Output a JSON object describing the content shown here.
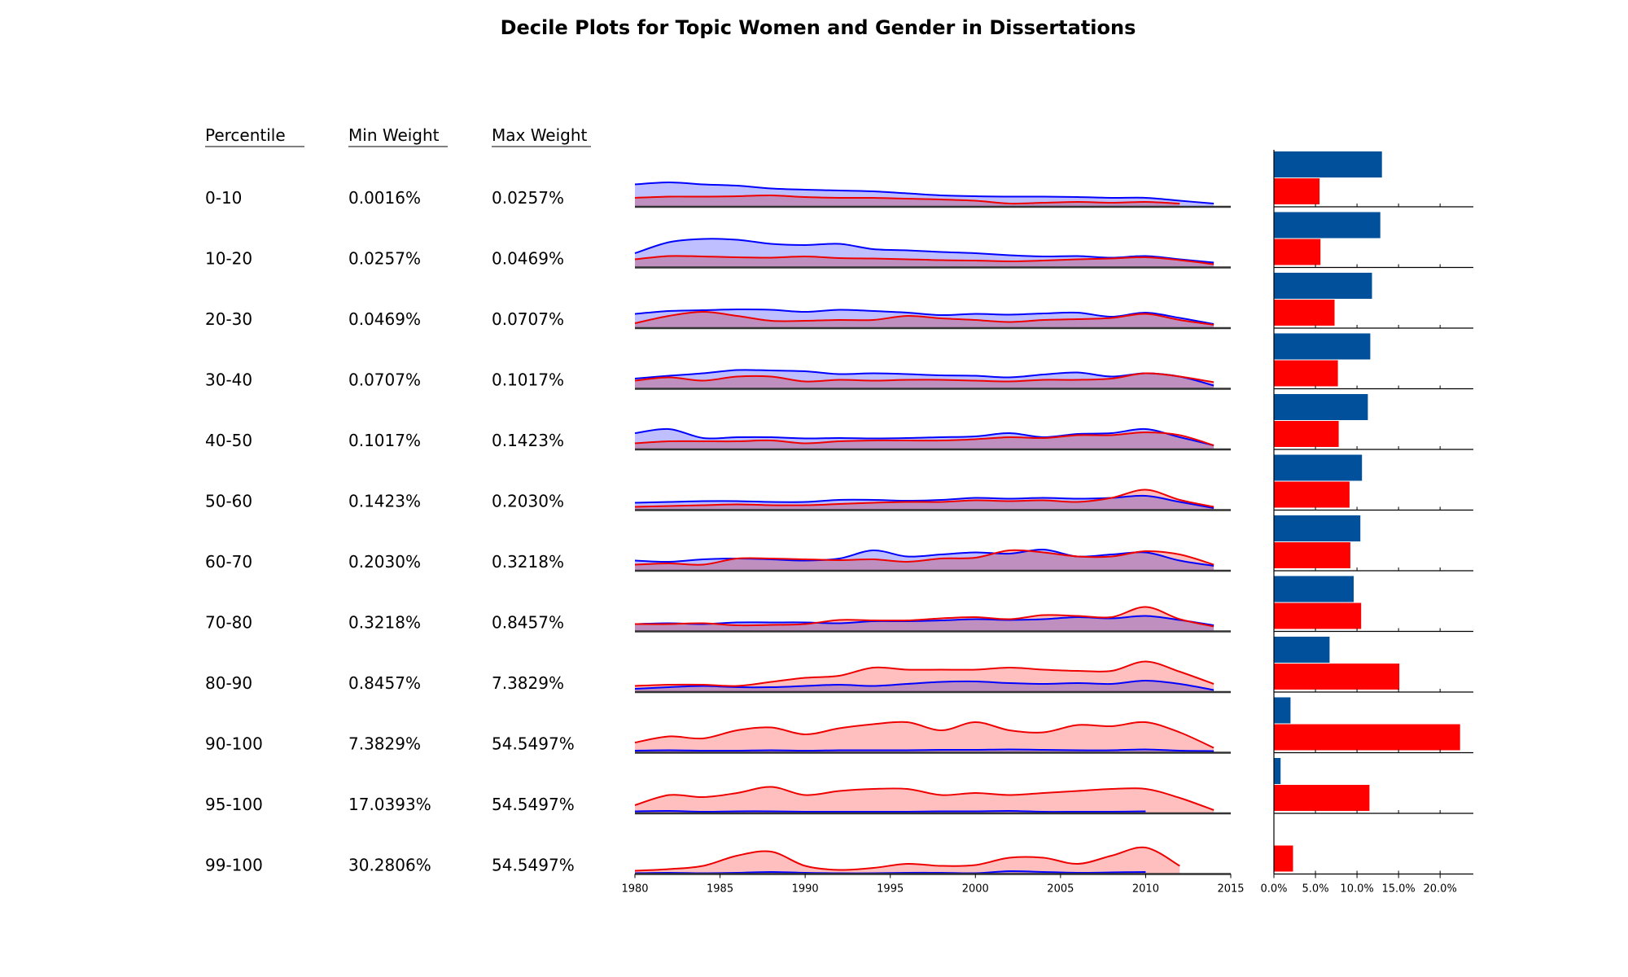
{
  "chart_data": {
    "type": "area",
    "title": "Decile Plots for Topic Women and Gender in Dissertations",
    "table_headers": [
      "Percentile",
      "Min Weight",
      "Max Weight"
    ],
    "x_range": [
      1980,
      2015
    ],
    "x_ticks": [
      "1980",
      "1985",
      "1990",
      "1995",
      "2000",
      "2005",
      "2010",
      "2015"
    ],
    "bar_ticks": [
      "0.0%",
      "5.0%",
      "10.0%",
      "15.0%",
      "20.0%"
    ],
    "bar_xlim": [
      0,
      24
    ],
    "colors": {
      "male_line": "#0000ff",
      "male_fill": "#bcbcff",
      "female_line": "#ee0000",
      "female_fill": "#ffbcbc",
      "overlap_fill": "#d08ec0",
      "male_bar": "#00509b",
      "female_bar": "#ff0000"
    },
    "years": [
      1980,
      1982,
      1984,
      1986,
      1988,
      1990,
      1992,
      1994,
      1996,
      1998,
      2000,
      2002,
      2004,
      2006,
      2008,
      2010,
      2012,
      2014
    ],
    "rows": [
      {
        "percentile": "0-10",
        "min_weight": "0.0016%",
        "max_weight": "0.0257%",
        "male": [
          0.55,
          0.6,
          0.55,
          0.52,
          0.45,
          0.42,
          0.4,
          0.38,
          0.33,
          0.28,
          0.26,
          0.25,
          0.25,
          0.24,
          0.22,
          0.22,
          0.15,
          0.08
        ],
        "female": [
          0.22,
          0.25,
          0.25,
          0.26,
          0.28,
          0.24,
          0.22,
          0.22,
          0.2,
          0.18,
          0.15,
          0.08,
          0.1,
          0.12,
          0.1,
          0.12,
          0.08,
          null
        ],
        "male_bar": 13.0,
        "female_bar": 5.5
      },
      {
        "percentile": "10-20",
        "min_weight": "0.0257%",
        "max_weight": "0.0469%",
        "male": [
          0.35,
          0.62,
          0.7,
          0.68,
          0.58,
          0.55,
          0.58,
          0.45,
          0.42,
          0.38,
          0.35,
          0.3,
          0.27,
          0.28,
          0.24,
          0.28,
          0.2,
          0.12
        ],
        "female": [
          0.2,
          0.28,
          0.27,
          0.25,
          0.24,
          0.27,
          0.23,
          0.22,
          0.2,
          0.18,
          0.17,
          0.15,
          0.17,
          0.2,
          0.22,
          0.25,
          0.18,
          0.08
        ],
        "male_bar": 12.8,
        "female_bar": 5.6
      },
      {
        "percentile": "20-30",
        "min_weight": "0.0469%",
        "max_weight": "0.0707%",
        "male": [
          0.35,
          0.42,
          0.44,
          0.46,
          0.45,
          0.4,
          0.45,
          0.42,
          0.38,
          0.32,
          0.35,
          0.33,
          0.36,
          0.38,
          0.28,
          0.38,
          0.25,
          0.1
        ],
        "female": [
          0.12,
          0.3,
          0.4,
          0.3,
          0.18,
          0.18,
          0.2,
          0.2,
          0.3,
          0.24,
          0.2,
          0.15,
          0.2,
          0.22,
          0.25,
          0.35,
          0.2,
          0.08
        ],
        "male_bar": 11.8,
        "female_bar": 7.3
      },
      {
        "percentile": "30-40",
        "min_weight": "0.0707%",
        "max_weight": "0.1017%",
        "male": [
          0.25,
          0.32,
          0.38,
          0.46,
          0.45,
          0.43,
          0.36,
          0.38,
          0.36,
          0.33,
          0.32,
          0.28,
          0.35,
          0.4,
          0.3,
          0.38,
          0.3,
          0.08
        ],
        "female": [
          0.2,
          0.28,
          0.2,
          0.3,
          0.3,
          0.18,
          0.22,
          0.2,
          0.22,
          0.22,
          0.2,
          0.18,
          0.22,
          0.22,
          0.25,
          0.38,
          0.3,
          0.16
        ],
        "male_bar": 11.6,
        "female_bar": 7.7
      },
      {
        "percentile": "40-50",
        "min_weight": "0.1017%",
        "max_weight": "0.1423%",
        "male": [
          0.4,
          0.5,
          0.28,
          0.3,
          0.3,
          0.27,
          0.28,
          0.27,
          0.28,
          0.3,
          0.32,
          0.4,
          0.3,
          0.38,
          0.4,
          0.5,
          0.3,
          0.1
        ],
        "female": [
          0.15,
          0.2,
          0.2,
          0.2,
          0.22,
          0.15,
          0.2,
          0.22,
          0.22,
          0.22,
          0.25,
          0.3,
          0.28,
          0.35,
          0.35,
          0.42,
          0.35,
          0.1
        ],
        "male_bar": 11.3,
        "female_bar": 7.8
      },
      {
        "percentile": "50-60",
        "min_weight": "0.1423%",
        "max_weight": "0.2030%",
        "male": [
          0.18,
          0.2,
          0.22,
          0.22,
          0.2,
          0.2,
          0.25,
          0.25,
          0.23,
          0.25,
          0.3,
          0.28,
          0.3,
          0.28,
          0.3,
          0.35,
          0.2,
          0.05
        ],
        "female": [
          0.08,
          0.1,
          0.12,
          0.14,
          0.12,
          0.12,
          0.15,
          0.18,
          0.2,
          0.2,
          0.24,
          0.22,
          0.24,
          0.2,
          0.3,
          0.5,
          0.25,
          0.08
        ],
        "male_bar": 10.6,
        "female_bar": 9.1
      },
      {
        "percentile": "60-70",
        "min_weight": "0.2030%",
        "max_weight": "0.3218%",
        "male": [
          0.25,
          0.22,
          0.28,
          0.3,
          0.28,
          0.25,
          0.3,
          0.5,
          0.35,
          0.4,
          0.45,
          0.42,
          0.52,
          0.35,
          0.4,
          0.45,
          0.25,
          0.12
        ],
        "female": [
          0.15,
          0.18,
          0.15,
          0.3,
          0.3,
          0.28,
          0.26,
          0.28,
          0.22,
          0.3,
          0.32,
          0.5,
          0.45,
          0.35,
          0.35,
          0.48,
          0.4,
          0.15
        ],
        "male_bar": 10.4,
        "female_bar": 9.2
      },
      {
        "percentile": "70-80",
        "min_weight": "0.3218%",
        "max_weight": "0.8457%",
        "male": [
          0.18,
          0.2,
          0.18,
          0.22,
          0.22,
          0.22,
          0.2,
          0.25,
          0.25,
          0.27,
          0.3,
          0.28,
          0.3,
          0.35,
          0.32,
          0.38,
          0.28,
          0.15
        ],
        "female": [
          0.18,
          0.18,
          0.2,
          0.15,
          0.16,
          0.18,
          0.28,
          0.27,
          0.27,
          0.32,
          0.35,
          0.3,
          0.4,
          0.38,
          0.35,
          0.6,
          0.3,
          0.12
        ],
        "male_bar": 9.6,
        "female_bar": 10.5
      },
      {
        "percentile": "80-90",
        "min_weight": "0.8457%",
        "max_weight": "7.3829%",
        "male": [
          0.08,
          0.12,
          0.15,
          0.12,
          0.12,
          0.15,
          0.18,
          0.15,
          0.2,
          0.25,
          0.26,
          0.22,
          0.2,
          0.22,
          0.2,
          0.28,
          0.2,
          0.05
        ],
        "female": [
          0.15,
          0.18,
          0.18,
          0.15,
          0.25,
          0.35,
          0.4,
          0.6,
          0.55,
          0.55,
          0.55,
          0.6,
          0.55,
          0.52,
          0.52,
          0.75,
          0.5,
          0.2
        ],
        "male_bar": 6.7,
        "female_bar": 15.1
      },
      {
        "percentile": "90-100",
        "min_weight": "7.3829%",
        "max_weight": "54.5497%",
        "male": [
          0.05,
          0.06,
          0.05,
          0.05,
          0.06,
          0.05,
          0.06,
          0.06,
          0.06,
          0.07,
          0.07,
          0.08,
          0.07,
          0.06,
          0.06,
          0.08,
          0.05,
          0.04
        ],
        "female": [
          0.25,
          0.4,
          0.35,
          0.55,
          0.62,
          0.45,
          0.6,
          0.7,
          0.75,
          0.55,
          0.75,
          0.55,
          0.5,
          0.68,
          0.65,
          0.75,
          0.5,
          0.12
        ],
        "male_bar": 2.0,
        "female_bar": 22.4
      },
      {
        "percentile": "95-100",
        "min_weight": "17.0393%",
        "max_weight": "54.5497%",
        "male": [
          0.05,
          0.06,
          0.04,
          0.05,
          0.05,
          0.04,
          0.04,
          0.04,
          0.04,
          0.05,
          0.05,
          0.06,
          0.04,
          0.04,
          0.04,
          0.05,
          null,
          null
        ],
        "female": [
          0.2,
          0.45,
          0.4,
          0.5,
          0.65,
          0.45,
          0.55,
          0.6,
          0.6,
          0.45,
          0.5,
          0.45,
          0.5,
          0.55,
          0.6,
          0.6,
          0.38,
          0.08
        ],
        "male_bar": 0.8,
        "female_bar": 11.5
      },
      {
        "percentile": "99-100",
        "min_weight": "30.2806%",
        "max_weight": "54.5497%",
        "male": [
          0.02,
          0.03,
          0.02,
          0.03,
          0.05,
          0.03,
          0.02,
          0.02,
          0.03,
          0.03,
          0.02,
          0.07,
          0.05,
          0.03,
          0.04,
          0.05,
          null,
          null
        ],
        "female": [
          0.08,
          0.12,
          0.2,
          0.45,
          0.55,
          0.2,
          0.1,
          0.15,
          0.25,
          0.2,
          0.22,
          0.4,
          0.4,
          0.25,
          0.45,
          0.65,
          0.2,
          null
        ],
        "male_bar": 0.0,
        "female_bar": 2.3
      }
    ]
  }
}
